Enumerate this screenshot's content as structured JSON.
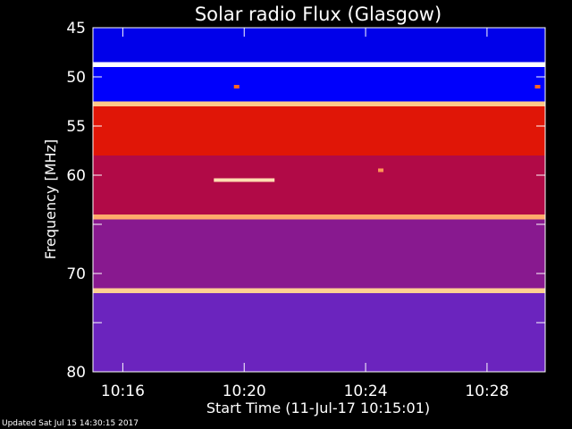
{
  "chart_data": {
    "type": "heatmap",
    "title": "Solar radio Flux (Glasgow)",
    "xlabel": "Start Time (11-Jul-17 10:15:01)",
    "ylabel": "Frequency [MHz]",
    "x_range_minutes": [
      "10:15:01",
      "10:29:55"
    ],
    "ylim": [
      45,
      80
    ],
    "y_ticks": [
      45,
      50,
      55,
      60,
      65,
      70,
      75,
      80
    ],
    "y_tick_labels": [
      "45",
      "50",
      "55",
      "60",
      "",
      "70",
      "",
      "80"
    ],
    "x_ticks": [
      "10:16",
      "10:20",
      "10:24",
      "10:28"
    ],
    "y_axis": "linear",
    "colormap": [
      "#00007a",
      "#0000ff",
      "#5a2ad8",
      "#a0106a",
      "#d0000a",
      "#ff4000",
      "#ffd090",
      "#ffffff"
    ],
    "background_intensity_by_band": [
      {
        "from_mhz": 45.0,
        "to_mhz": 48.5,
        "level": 0.12
      },
      {
        "from_mhz": 48.5,
        "to_mhz": 49.0,
        "level": 1.0
      },
      {
        "from_mhz": 49.0,
        "to_mhz": 52.5,
        "level": 0.14
      },
      {
        "from_mhz": 52.5,
        "to_mhz": 53.0,
        "level": 0.85
      },
      {
        "from_mhz": 53.0,
        "to_mhz": 58.0,
        "level": 0.62
      },
      {
        "from_mhz": 58.0,
        "to_mhz": 64.0,
        "level": 0.48
      },
      {
        "from_mhz": 64.0,
        "to_mhz": 64.5,
        "level": 0.82
      },
      {
        "from_mhz": 64.5,
        "to_mhz": 71.5,
        "level": 0.38
      },
      {
        "from_mhz": 71.5,
        "to_mhz": 72.0,
        "level": 0.86
      },
      {
        "from_mhz": 72.0,
        "to_mhz": 80.0,
        "level": 0.32
      }
    ],
    "features": [
      {
        "type": "narrowband-burst",
        "time_start": "10:19:00",
        "time_end": "10:21:00",
        "freq_mhz": 60.5,
        "level": 0.9
      },
      {
        "type": "spot",
        "time": "10:19:45",
        "freq_mhz": 51.0,
        "level": 0.75
      },
      {
        "type": "spot",
        "time": "10:24:30",
        "freq_mhz": 59.5,
        "level": 0.8
      },
      {
        "type": "spot",
        "time": "10:29:40",
        "freq_mhz": 51.0,
        "level": 0.75
      }
    ]
  },
  "footer": {
    "updated": "Updated Sat Jul 15 14:30:15 2017"
  }
}
